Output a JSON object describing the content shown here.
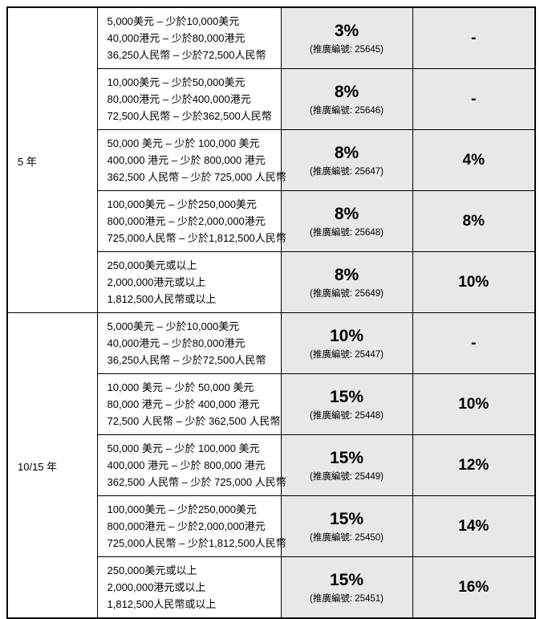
{
  "page": {
    "background": "#ffffff"
  },
  "table": {
    "border_color": "#000000",
    "highlight_bg": "#e8e8e8",
    "sections": [
      {
        "term": "5 年",
        "rows": [
          {
            "amounts": [
              "5,000美元 – 少於10,000美元",
              "40,000港元 – 少於80,000港元",
              "36,250人民幣 – 少於72,500人民幣"
            ],
            "rate": "3%",
            "promo": "(推廣編號: 25645)",
            "extra": "-"
          },
          {
            "amounts": [
              "10,000美元 – 少於50,000美元",
              "80,000港元 – 少於400,000港元",
              "72,500人民幣 – 少於362,500人民幣"
            ],
            "rate": "8%",
            "promo": "(推廣編號: 25646)",
            "extra": "-"
          },
          {
            "amounts": [
              "50,000 美元 – 少於 100,000 美元",
              "400,000 港元 – 少於 800,000 港元",
              "362,500 人民幣 – 少於 725,000 人民幣"
            ],
            "rate": "8%",
            "promo": "(推廣編號: 25647)",
            "extra": "4%"
          },
          {
            "amounts": [
              "100,000美元 – 少於250,000美元",
              "800,000港元 – 少於2,000,000港元",
              "725,000人民幣 – 少於1,812,500人民幣"
            ],
            "rate": "8%",
            "promo": "(推廣編號: 25648)",
            "extra": "8%"
          },
          {
            "amounts": [
              "250,000美元或以上",
              "2,000,000港元或以上",
              "1,812,500人民幣或以上"
            ],
            "rate": "8%",
            "promo": "(推廣編號: 25649)",
            "extra": "10%"
          }
        ]
      },
      {
        "term": "10/15 年",
        "rows": [
          {
            "amounts": [
              "5,000美元 – 少於10,000美元",
              "40,000港元 – 少於80,000港元",
              "36,250人民幣 – 少於72,500人民幣"
            ],
            "rate": "10%",
            "promo": "(推廣編號: 25447)",
            "extra": "-"
          },
          {
            "amounts": [
              "10,000 美元 – 少於 50,000 美元",
              "80,000 港元 – 少於 400,000 港元",
              "72,500 人民幣 – 少於 362,500 人民幣"
            ],
            "rate": "15%",
            "promo": "(推廣編號: 25448)",
            "extra": "10%"
          },
          {
            "amounts": [
              "50,000 美元 – 少於 100,000 美元",
              "400,000 港元 – 少於 800,000 港元",
              "362,500 人民幣 – 少於 725,000 人民幣"
            ],
            "rate": "15%",
            "promo": "(推廣編號: 25449)",
            "extra": "12%"
          },
          {
            "amounts": [
              "100,000美元 – 少於250,000美元",
              "800,000港元 – 少於2,000,000港元",
              "725,000人民幣 – 少於1,812,500人民幣"
            ],
            "rate": "15%",
            "promo": "(推廣編號: 25450)",
            "extra": "14%"
          },
          {
            "amounts": [
              "250,000美元或以上",
              "2,000,000港元或以上",
              "1,812,500人民幣或以上"
            ],
            "rate": "15%",
            "promo": "(推廣編號: 25451)",
            "extra": "16%"
          }
        ]
      }
    ]
  }
}
